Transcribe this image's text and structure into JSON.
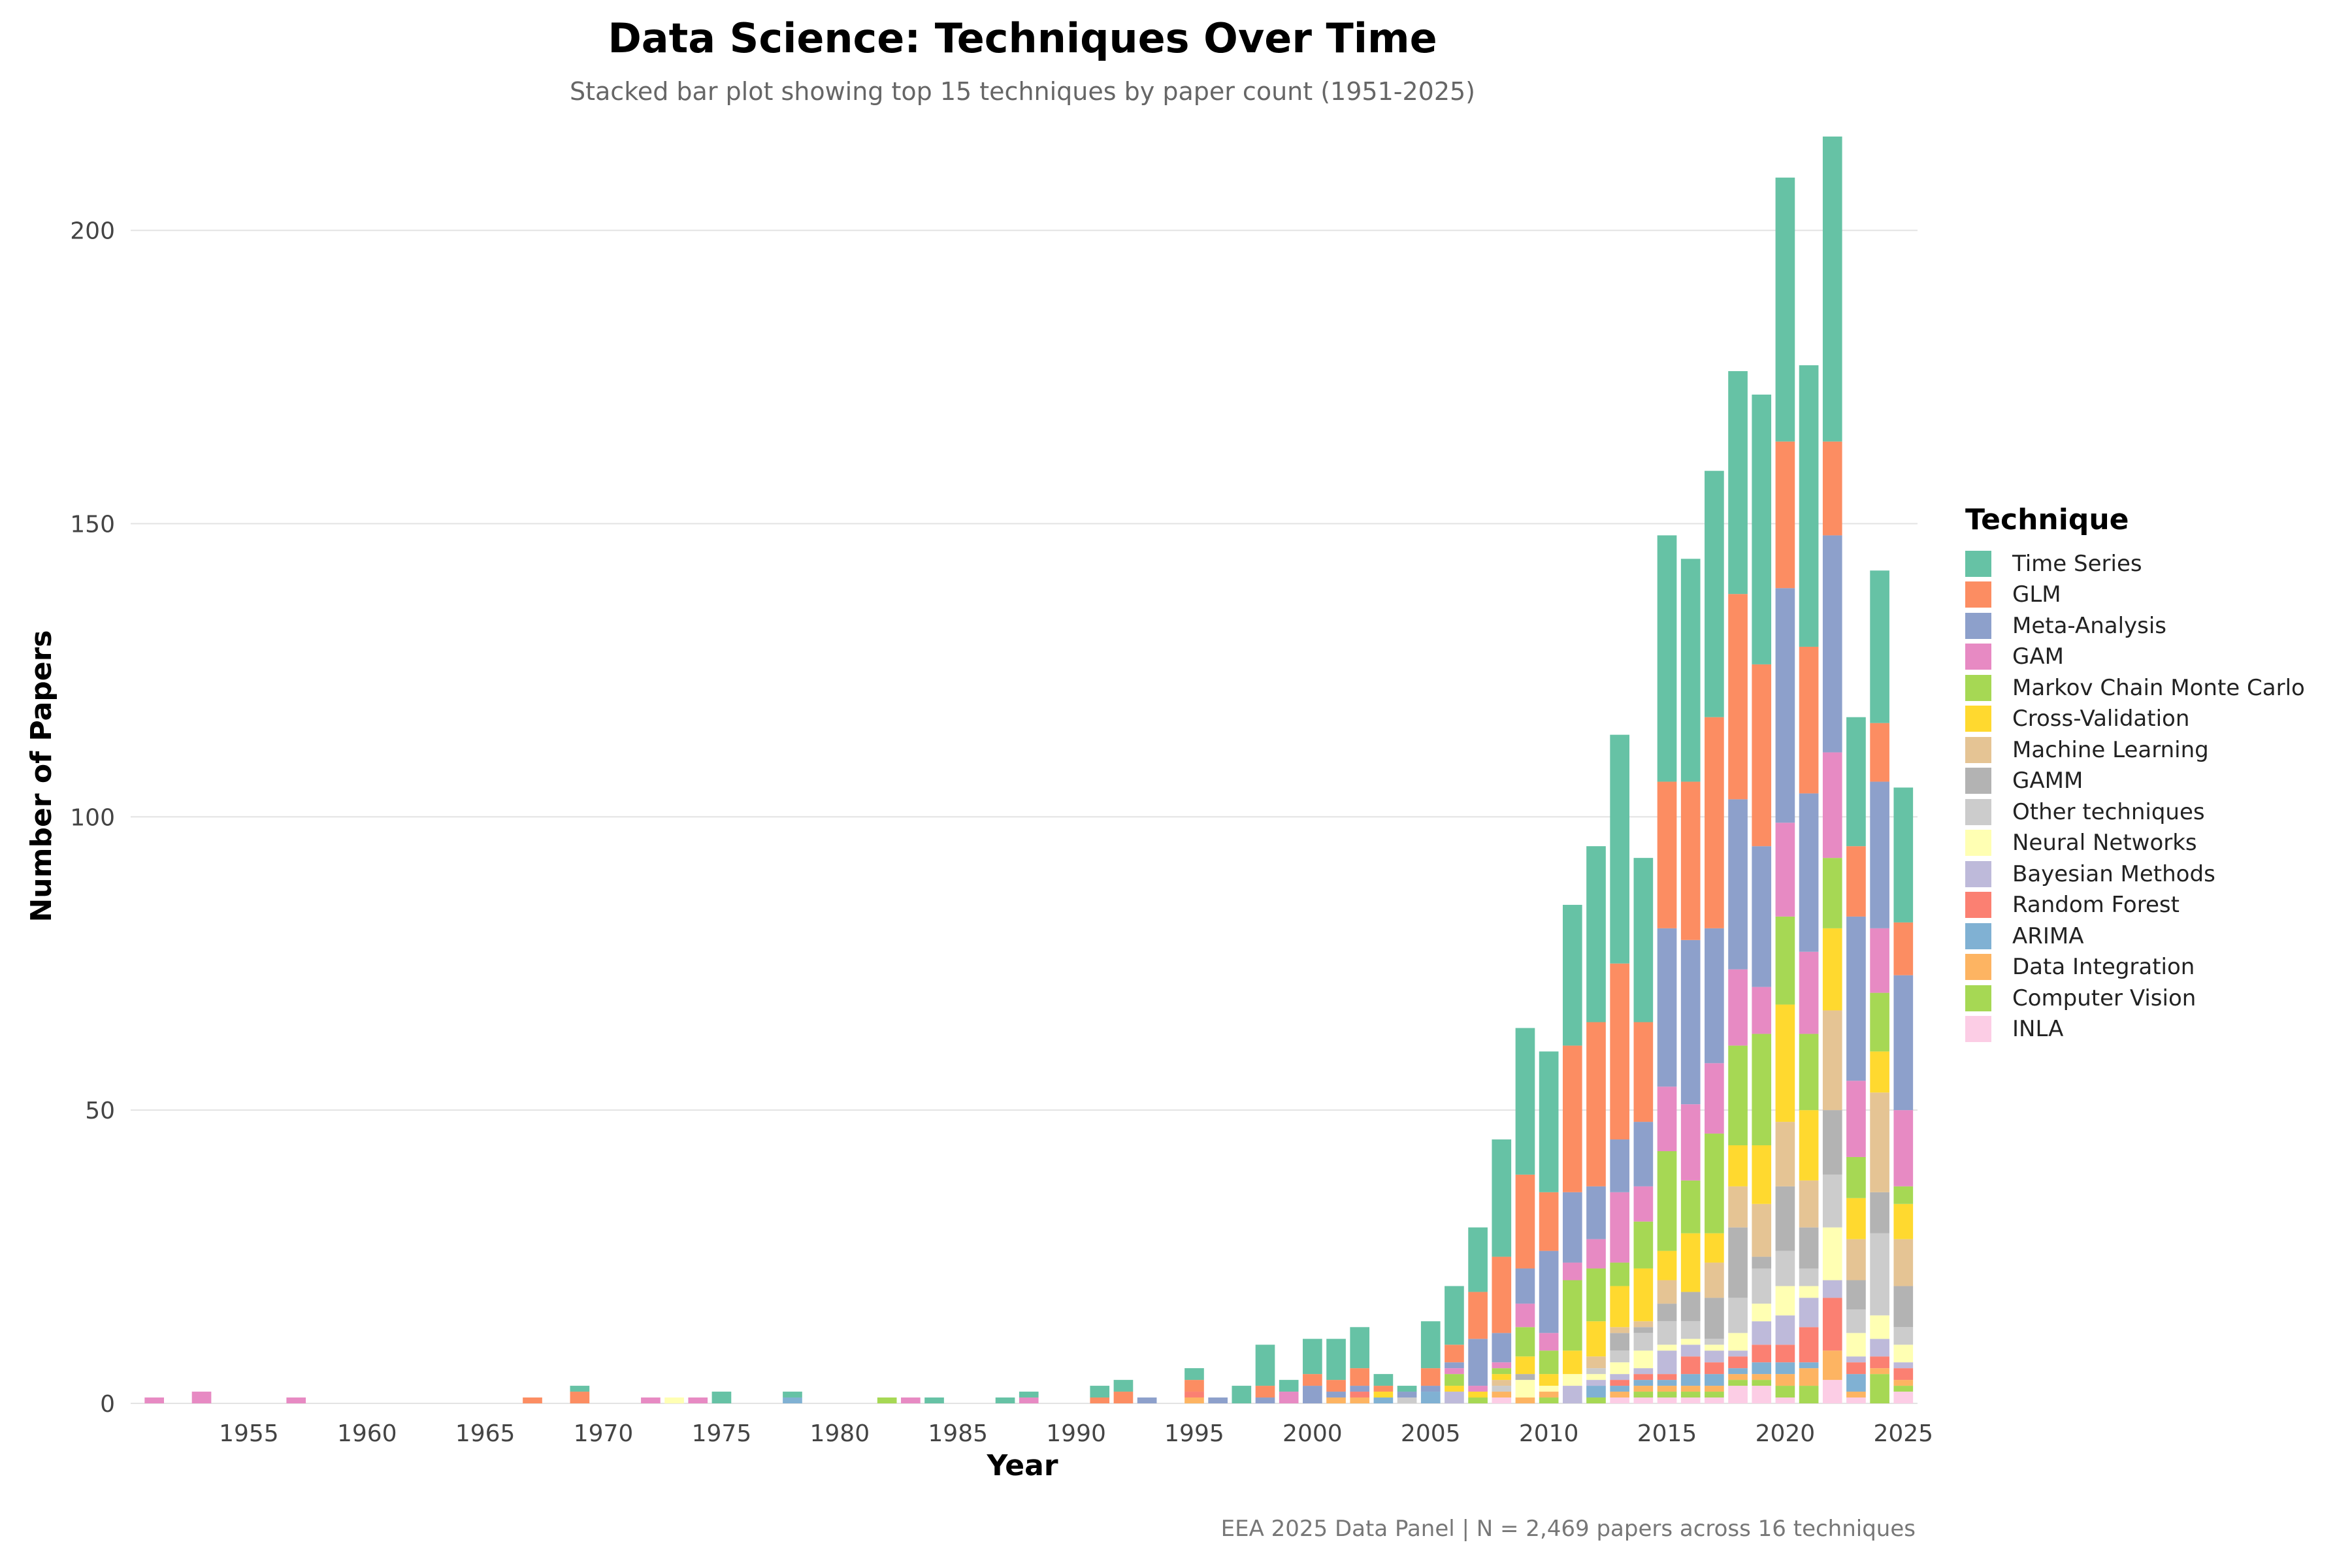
{
  "chart_data": {
    "type": "bar",
    "stacked": true,
    "title": "Data Science: Techniques Over Time",
    "subtitle": "Stacked bar plot showing top 15 techniques by paper count (1951-2025)",
    "caption": "EEA 2025 Data Panel | N = 2,469 papers across 16 techniques",
    "xlabel": "Year",
    "ylabel": "Number of Papers",
    "legend_title": "Technique",
    "legend_position": "right",
    "grid": true,
    "ylim": [
      0,
      217
    ],
    "xlim": [
      1950,
      2025.6
    ],
    "xticks": [
      1955,
      1960,
      1965,
      1970,
      1975,
      1980,
      1985,
      1990,
      1995,
      2000,
      2005,
      2010,
      2015,
      2020,
      2025
    ],
    "yticks": [
      0,
      50,
      100,
      150,
      200
    ],
    "series": [
      {
        "name": "INLA",
        "color": "#FCCDE5"
      },
      {
        "name": "Computer Vision",
        "color": "#A6D854"
      },
      {
        "name": "Data Integration",
        "color": "#FDB462"
      },
      {
        "name": "ARIMA",
        "color": "#80B1D3"
      },
      {
        "name": "Random Forest",
        "color": "#FB8072"
      },
      {
        "name": "Bayesian Methods",
        "color": "#BEBADA"
      },
      {
        "name": "Neural Networks",
        "color": "#FFFFB3"
      },
      {
        "name": "Other techniques",
        "color": "#CCCCCC"
      },
      {
        "name": "GAMM",
        "color": "#B3B3B3"
      },
      {
        "name": "Machine Learning",
        "color": "#E5C494"
      },
      {
        "name": "Cross-Validation",
        "color": "#FFD92F"
      },
      {
        "name": "Markov Chain Monte Carlo",
        "color": "#A6D854"
      },
      {
        "name": "GAM",
        "color": "#E78AC3"
      },
      {
        "name": "Meta-Analysis",
        "color": "#8DA0CB"
      },
      {
        "name": "GLM",
        "color": "#FC8D62"
      },
      {
        "name": "Time Series",
        "color": "#66C2A5"
      }
    ],
    "legend_order": [
      "Time Series",
      "GLM",
      "Meta-Analysis",
      "GAM",
      "Markov Chain Monte Carlo",
      "Cross-Validation",
      "Machine Learning",
      "GAMM",
      "Other techniques",
      "Neural Networks",
      "Bayesian Methods",
      "Random Forest",
      "ARIMA",
      "Data Integration",
      "Computer Vision",
      "INLA"
    ],
    "years": [
      {
        "year": 1951,
        "counts": {
          "GAM": 1
        }
      },
      {
        "year": 1953,
        "counts": {
          "GAM": 2
        }
      },
      {
        "year": 1957,
        "counts": {
          "GAM": 1
        }
      },
      {
        "year": 1967,
        "counts": {
          "GLM": 1
        }
      },
      {
        "year": 1969,
        "counts": {
          "GLM": 2,
          "Time Series": 1
        }
      },
      {
        "year": 1972,
        "counts": {
          "GAM": 1
        }
      },
      {
        "year": 1973,
        "counts": {
          "Neural Networks": 1
        }
      },
      {
        "year": 1974,
        "counts": {
          "GAM": 1
        }
      },
      {
        "year": 1975,
        "counts": {
          "Time Series": 2
        }
      },
      {
        "year": 1978,
        "counts": {
          "ARIMA": 1,
          "Time Series": 1
        }
      },
      {
        "year": 1982,
        "counts": {
          "Markov Chain Monte Carlo": 1
        }
      },
      {
        "year": 1983,
        "counts": {
          "GAM": 1
        }
      },
      {
        "year": 1984,
        "counts": {
          "Time Series": 1
        }
      },
      {
        "year": 1987,
        "counts": {
          "Time Series": 1
        }
      },
      {
        "year": 1988,
        "counts": {
          "GAM": 1,
          "Time Series": 1
        }
      },
      {
        "year": 1991,
        "counts": {
          "GLM": 1,
          "Time Series": 2
        }
      },
      {
        "year": 1992,
        "counts": {
          "GLM": 2,
          "Time Series": 2
        }
      },
      {
        "year": 1993,
        "counts": {
          "Meta-Analysis": 1
        }
      },
      {
        "year": 1995,
        "counts": {
          "Data Integration": 1,
          "Random Forest": 1,
          "GLM": 2,
          "Time Series": 2
        }
      },
      {
        "year": 1996,
        "counts": {
          "Meta-Analysis": 1
        }
      },
      {
        "year": 1997,
        "counts": {
          "Time Series": 3
        }
      },
      {
        "year": 1998,
        "counts": {
          "Meta-Analysis": 1,
          "GLM": 2,
          "Time Series": 7
        }
      },
      {
        "year": 1999,
        "counts": {
          "GAM": 2,
          "Time Series": 2
        }
      },
      {
        "year": 2000,
        "counts": {
          "Meta-Analysis": 3,
          "GLM": 2,
          "Time Series": 6
        }
      },
      {
        "year": 2001,
        "counts": {
          "Data Integration": 1,
          "Meta-Analysis": 1,
          "GLM": 2,
          "Time Series": 7
        }
      },
      {
        "year": 2002,
        "counts": {
          "Data Integration": 1,
          "Random Forest": 1,
          "Meta-Analysis": 1,
          "GLM": 3,
          "Time Series": 7
        }
      },
      {
        "year": 2003,
        "counts": {
          "ARIMA": 1,
          "Cross-Validation": 1,
          "GLM": 1,
          "Time Series": 2
        }
      },
      {
        "year": 2004,
        "counts": {
          "Other techniques": 1,
          "Meta-Analysis": 1,
          "Time Series": 1
        }
      },
      {
        "year": 2005,
        "counts": {
          "ARIMA": 2,
          "Meta-Analysis": 1,
          "GLM": 3,
          "Time Series": 8
        }
      },
      {
        "year": 2006,
        "counts": {
          "Bayesian Methods": 2,
          "Cross-Validation": 1,
          "Markov Chain Monte Carlo": 2,
          "GAM": 1,
          "Meta-Analysis": 1,
          "GLM": 3,
          "Time Series": 10
        }
      },
      {
        "year": 2007,
        "counts": {
          "Computer Vision": 1,
          "Cross-Validation": 1,
          "GAM": 1,
          "Meta-Analysis": 8,
          "GLM": 8,
          "Time Series": 11
        }
      },
      {
        "year": 2008,
        "counts": {
          "INLA": 1,
          "Data Integration": 1,
          "Other techniques": 1,
          "Machine Learning": 1,
          "Cross-Validation": 1,
          "Markov Chain Monte Carlo": 1,
          "GAM": 1,
          "Meta-Analysis": 5,
          "GLM": 13,
          "Time Series": 20
        }
      },
      {
        "year": 2009,
        "counts": {
          "Data Integration": 1,
          "Neural Networks": 3,
          "GAMM": 1,
          "Cross-Validation": 3,
          "Markov Chain Monte Carlo": 5,
          "GAM": 4,
          "Meta-Analysis": 6,
          "GLM": 16,
          "Time Series": 25
        }
      },
      {
        "year": 2010,
        "counts": {
          "Computer Vision": 1,
          "Data Integration": 1,
          "Neural Networks": 1,
          "Cross-Validation": 2,
          "Markov Chain Monte Carlo": 4,
          "GAM": 3,
          "Meta-Analysis": 14,
          "GLM": 10,
          "Time Series": 24
        }
      },
      {
        "year": 2011,
        "counts": {
          "Bayesian Methods": 3,
          "Neural Networks": 2,
          "Cross-Validation": 4,
          "Markov Chain Monte Carlo": 12,
          "GAM": 3,
          "Meta-Analysis": 12,
          "GLM": 25,
          "Time Series": 24
        }
      },
      {
        "year": 2012,
        "counts": {
          "Computer Vision": 1,
          "ARIMA": 2,
          "Bayesian Methods": 1,
          "Neural Networks": 1,
          "Other techniques": 1,
          "Machine Learning": 2,
          "Cross-Validation": 6,
          "Markov Chain Monte Carlo": 9,
          "GAM": 5,
          "Meta-Analysis": 9,
          "GLM": 28,
          "Time Series": 30
        }
      },
      {
        "year": 2013,
        "counts": {
          "INLA": 1,
          "Data Integration": 1,
          "ARIMA": 1,
          "Random Forest": 1,
          "Bayesian Methods": 1,
          "Neural Networks": 2,
          "Other techniques": 2,
          "GAMM": 3,
          "Machine Learning": 1,
          "Cross-Validation": 7,
          "Markov Chain Monte Carlo": 4,
          "GAM": 12,
          "Meta-Analysis": 9,
          "GLM": 30,
          "Time Series": 39
        }
      },
      {
        "year": 2014,
        "counts": {
          "INLA": 1,
          "Computer Vision": 1,
          "Data Integration": 1,
          "ARIMA": 1,
          "Random Forest": 1,
          "Bayesian Methods": 1,
          "Neural Networks": 3,
          "Other techniques": 3,
          "GAMM": 1,
          "Machine Learning": 1,
          "Cross-Validation": 9,
          "Markov Chain Monte Carlo": 8,
          "GAM": 6,
          "Meta-Analysis": 11,
          "GLM": 17,
          "Time Series": 28
        }
      },
      {
        "year": 2015,
        "counts": {
          "INLA": 1,
          "Computer Vision": 1,
          "Data Integration": 1,
          "ARIMA": 1,
          "Random Forest": 1,
          "Bayesian Methods": 4,
          "Neural Networks": 1,
          "Other techniques": 4,
          "GAMM": 3,
          "Machine Learning": 4,
          "Cross-Validation": 5,
          "Markov Chain Monte Carlo": 17,
          "GAM": 11,
          "Meta-Analysis": 27,
          "GLM": 25,
          "Time Series": 42
        }
      },
      {
        "year": 2016,
        "counts": {
          "INLA": 1,
          "Computer Vision": 1,
          "Data Integration": 1,
          "ARIMA": 2,
          "Random Forest": 3,
          "Bayesian Methods": 2,
          "Neural Networks": 1,
          "Other techniques": 3,
          "GAMM": 5,
          "Machine Learning": 0,
          "Cross-Validation": 10,
          "Markov Chain Monte Carlo": 9,
          "GAM": 13,
          "Meta-Analysis": 28,
          "GLM": 27,
          "Time Series": 38
        }
      },
      {
        "year": 2017,
        "counts": {
          "INLA": 1,
          "Computer Vision": 1,
          "Data Integration": 1,
          "ARIMA": 2,
          "Random Forest": 2,
          "Bayesian Methods": 2,
          "Neural Networks": 1,
          "Other techniques": 1,
          "GAMM": 7,
          "Machine Learning": 6,
          "Cross-Validation": 5,
          "Markov Chain Monte Carlo": 17,
          "GAM": 12,
          "Meta-Analysis": 23,
          "GLM": 36,
          "Time Series": 42
        }
      },
      {
        "year": 2018,
        "counts": {
          "INLA": 3,
          "Computer Vision": 1,
          "Data Integration": 1,
          "ARIMA": 1,
          "Random Forest": 2,
          "Bayesian Methods": 1,
          "Neural Networks": 3,
          "Other techniques": 6,
          "GAMM": 12,
          "Machine Learning": 7,
          "Cross-Validation": 7,
          "Markov Chain Monte Carlo": 17,
          "GAM": 13,
          "Meta-Analysis": 29,
          "GLM": 35,
          "Time Series": 38
        }
      },
      {
        "year": 2019,
        "counts": {
          "INLA": 3,
          "Computer Vision": 1,
          "Data Integration": 1,
          "ARIMA": 2,
          "Random Forest": 3,
          "Bayesian Methods": 4,
          "Neural Networks": 3,
          "Other techniques": 6,
          "GAMM": 2,
          "Machine Learning": 9,
          "Cross-Validation": 10,
          "Markov Chain Monte Carlo": 19,
          "GAM": 8,
          "Meta-Analysis": 24,
          "GLM": 31,
          "Time Series": 46
        }
      },
      {
        "year": 2020,
        "counts": {
          "INLA": 1,
          "Computer Vision": 2,
          "Data Integration": 2,
          "ARIMA": 2,
          "Random Forest": 3,
          "Bayesian Methods": 5,
          "Neural Networks": 5,
          "Other techniques": 6,
          "GAMM": 11,
          "Machine Learning": 11,
          "Cross-Validation": 20,
          "Markov Chain Monte Carlo": 15,
          "GAM": 16,
          "Meta-Analysis": 40,
          "GLM": 25,
          "Time Series": 45
        }
      },
      {
        "year": 2021,
        "counts": {
          "INLA": 0,
          "Computer Vision": 3,
          "Data Integration": 3,
          "ARIMA": 1,
          "Random Forest": 6,
          "Bayesian Methods": 5,
          "Neural Networks": 2,
          "Other techniques": 3,
          "GAMM": 7,
          "Machine Learning": 8,
          "Cross-Validation": 12,
          "Markov Chain Monte Carlo": 13,
          "GAM": 14,
          "Meta-Analysis": 27,
          "GLM": 25,
          "Time Series": 48
        }
      },
      {
        "year": 2022,
        "counts": {
          "INLA": 4,
          "Computer Vision": 0,
          "Data Integration": 5,
          "ARIMA": 0,
          "Random Forest": 9,
          "Bayesian Methods": 3,
          "Neural Networks": 9,
          "Other techniques": 9,
          "GAMM": 11,
          "Machine Learning": 17,
          "Cross-Validation": 14,
          "Markov Chain Monte Carlo": 12,
          "GAM": 18,
          "Meta-Analysis": 37,
          "GLM": 16,
          "Time Series": 52
        }
      },
      {
        "year": 2023,
        "counts": {
          "INLA": 1,
          "Computer Vision": 0,
          "Data Integration": 1,
          "ARIMA": 3,
          "Random Forest": 2,
          "Bayesian Methods": 1,
          "Neural Networks": 4,
          "Other techniques": 4,
          "GAMM": 5,
          "Machine Learning": 7,
          "Cross-Validation": 7,
          "Markov Chain Monte Carlo": 7,
          "GAM": 13,
          "Meta-Analysis": 28,
          "GLM": 12,
          "Time Series": 22
        }
      },
      {
        "year": 2024,
        "counts": {
          "INLA": 0,
          "Computer Vision": 5,
          "Data Integration": 1,
          "ARIMA": 0,
          "Random Forest": 2,
          "Bayesian Methods": 3,
          "Neural Networks": 4,
          "Other techniques": 14,
          "GAMM": 7,
          "Machine Learning": 17,
          "Cross-Validation": 7,
          "Markov Chain Monte Carlo": 10,
          "GAM": 11,
          "Meta-Analysis": 25,
          "GLM": 10,
          "Time Series": 26
        }
      },
      {
        "year": 2025,
        "counts": {
          "INLA": 2,
          "Computer Vision": 1,
          "Data Integration": 1,
          "ARIMA": 0,
          "Random Forest": 2,
          "Bayesian Methods": 1,
          "Neural Networks": 3,
          "Other techniques": 3,
          "GAMM": 7,
          "Machine Learning": 8,
          "Cross-Validation": 6,
          "Markov Chain Monte Carlo": 3,
          "GAM": 13,
          "Meta-Analysis": 23,
          "GLM": 9,
          "Time Series": 23
        }
      }
    ]
  }
}
